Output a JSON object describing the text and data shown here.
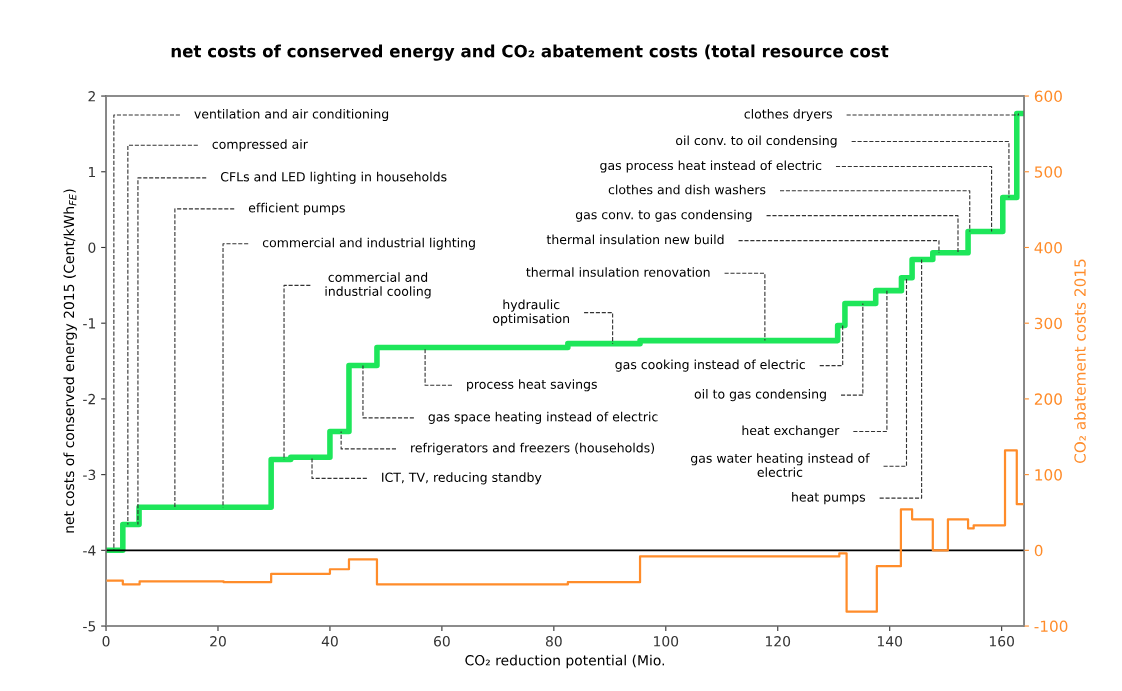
{
  "chart_data": {
    "type": "step",
    "title": "net costs of conserved energy and CO₂ abatement costs (total resource cost",
    "xlabel": "CO₂ reduction potential (Mio.",
    "ylabel": "net costs of conserved energy 2015 (Cent/kWh$_{FE}$)",
    "y2label": "CO₂ abatement costs 2015",
    "xlim": [
      0,
      164
    ],
    "xticks": [
      0,
      20,
      40,
      60,
      80,
      100,
      120,
      140,
      160
    ],
    "ylim": [
      -5,
      2
    ],
    "yticks": [
      -5,
      -4,
      -3,
      -2,
      -1,
      0,
      1,
      2
    ],
    "y2lim": [
      -100,
      600
    ],
    "y2ticks": [
      -100,
      0,
      100,
      200,
      300,
      400,
      500,
      600
    ],
    "grid": false,
    "series": [
      {
        "color": "#1ee65a",
        "axis": "y",
        "x": [
          0,
          3,
          5.9,
          29.5,
          33,
          40,
          43.4,
          48.4,
          82.5,
          95.4,
          130.7,
          132,
          137.5,
          142.1,
          144,
          147.7,
          154,
          160.2,
          162.7,
          164
        ],
        "values": [
          -4.0,
          -3.66,
          -3.43,
          -2.8,
          -2.77,
          -2.43,
          -1.56,
          -1.32,
          -1.27,
          -1.23,
          -1.03,
          -0.74,
          -0.57,
          -0.4,
          -0.16,
          -0.07,
          0.21,
          0.66,
          1.77,
          1.77
        ]
      },
      {
        "color": "#ff8c2a",
        "axis": "y2",
        "x": [
          0,
          3,
          6,
          21,
          29.5,
          40,
          43.4,
          48.4,
          82.5,
          95.4,
          131,
          132.3,
          137.7,
          142,
          144,
          147.7,
          150.4,
          154,
          155,
          160.6,
          162.7,
          164
        ],
        "values": [
          -40,
          -45,
          -41,
          -42,
          -31,
          -25,
          -12,
          -45,
          -42,
          -8,
          -4,
          -81,
          -21,
          54,
          41,
          0,
          41,
          29,
          33,
          132,
          61,
          61
        ]
      }
    ],
    "ref_lines": [
      {
        "axis": "y2",
        "value": 0,
        "color": "#000000"
      }
    ],
    "annotations": [
      {
        "text": "ventilation and air conditioning",
        "x": 1.4,
        "y": -4.0
      },
      {
        "text": "compressed air",
        "x": 3.9,
        "y": -3.66
      },
      {
        "text": "CFLs and LED lighting in households",
        "x": 5.7,
        "y": -3.66
      },
      {
        "text": "efficient pumps",
        "x": 12.3,
        "y": -3.43
      },
      {
        "text": "commercial and industrial lighting",
        "x": 20.9,
        "y": -3.43
      },
      {
        "text": "commercial and\nindustrial cooling",
        "x": 31.8,
        "y": -2.8
      },
      {
        "text": "process heat savings",
        "x": 57,
        "y": -1.32
      },
      {
        "text": "gas space heating instead of electric",
        "x": 45.9,
        "y": -1.56
      },
      {
        "text": "refrigerators and freezers (households)",
        "x": 42,
        "y": -2.43
      },
      {
        "text": "ICT, TV, reducing standby",
        "x": 36.8,
        "y": -2.77
      },
      {
        "text": "hydraulic\noptimisation",
        "x": 90.5,
        "y": -1.27
      },
      {
        "text": "thermal insulation renovation",
        "x": 117.7,
        "y": -1.23
      },
      {
        "text": "thermal insulation new build",
        "x": 148.8,
        "y": -0.07
      },
      {
        "text": "gas conv. to gas condensing",
        "x": 152.2,
        "y": -0.07
      },
      {
        "text": "clothes and dish washers",
        "x": 154.3,
        "y": 0.21
      },
      {
        "text": "gas process heat instead of electric",
        "x": 158.2,
        "y": 0.21
      },
      {
        "text": "oil conv. to oil condensing",
        "x": 161.3,
        "y": 0.66
      },
      {
        "text": "clothes dryers",
        "x": 163,
        "y": 1.77
      },
      {
        "text": "gas cooking instead of electric",
        "x": 131.6,
        "y": -1.03
      },
      {
        "text": "oil to gas condensing",
        "x": 135.2,
        "y": -0.74
      },
      {
        "text": "heat exchanger",
        "x": 139.5,
        "y": -0.57
      },
      {
        "text": "gas water heating instead of\nelectric",
        "x": 143,
        "y": -0.4
      },
      {
        "text": "heat pumps",
        "x": 145.7,
        "y": -0.16
      }
    ]
  }
}
